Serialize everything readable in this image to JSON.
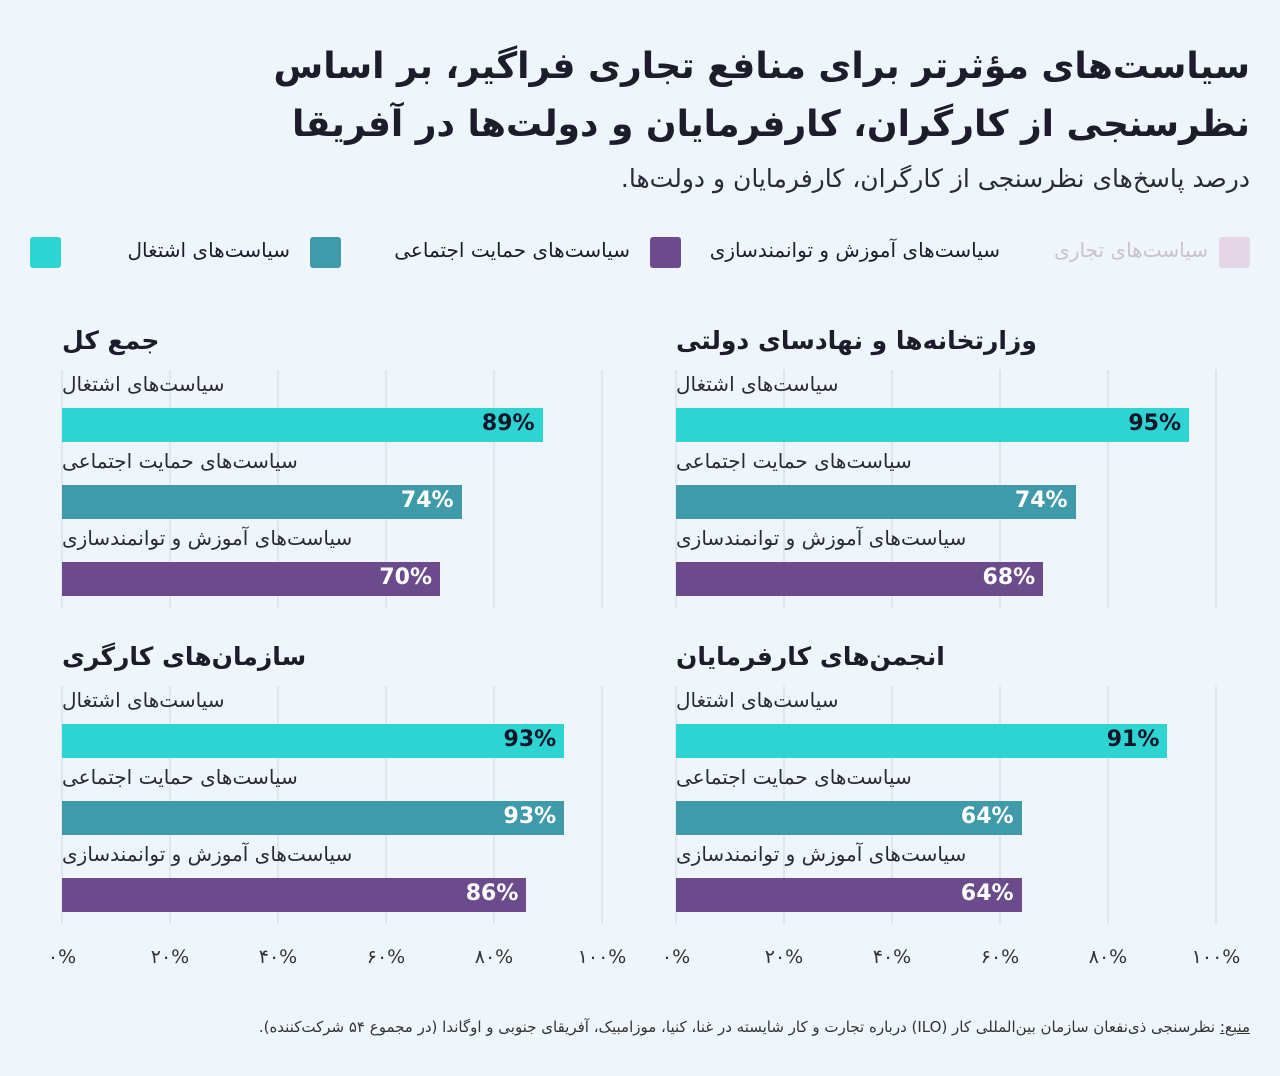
{
  "title": "سیاست‌های مؤثرتر برای منافع تجاری فراگیر، بر اساس نظرسنجی از کارگران، کارفرمایان و دولت‌ها در آفریقا",
  "subtitle": "درصد پاسخ‌های نظرسنجی از کارگران، کارفرمایان و دولت‌ها.",
  "legend": [
    {
      "label": "سیاست‌های اشتغال",
      "color": "#2dd4d2"
    },
    {
      "label": "سیاست‌های حمایت اجتماعی",
      "color": "#3f9ba9"
    },
    {
      "label": "سیاست‌های آموزش و توانمندسازی",
      "color": "#6b4b8c"
    },
    {
      "label": "سیاست‌های تجاری",
      "color": "#e3d6e6",
      "faded": true
    }
  ],
  "colors": {
    "employment": "#2dd4d2",
    "social": "#3f9ba9",
    "education": "#6b4b8c",
    "grid": "#e0e6ed"
  },
  "chart_data": {
    "type": "bar",
    "orientation": "horizontal",
    "xlim": [
      0,
      100
    ],
    "tick_labels": [
      "۰%",
      "۲۰%",
      "۴۰%",
      "۶۰%",
      "۸۰%",
      "۱۰۰%"
    ],
    "ticks": [
      0,
      20,
      40,
      60,
      80,
      100
    ],
    "panels": [
      {
        "title": "جمع کل",
        "bars": [
          {
            "label": "سیاست‌های اشتغال",
            "value": 89,
            "value_label": "89%",
            "color": "#2dd4d2"
          },
          {
            "label": "سیاست‌های حمایت اجتماعی",
            "value": 74,
            "value_label": "74%",
            "color": "#3f9ba9"
          },
          {
            "label": "سیاست‌های آموزش و توانمندسازی",
            "value": 70,
            "value_label": "70%",
            "color": "#6b4b8c"
          }
        ]
      },
      {
        "title": "وزارتخانه‌ها و نهادسای دولتی",
        "bars": [
          {
            "label": "سیاست‌های اشتغال",
            "value": 95,
            "value_label": "95%",
            "color": "#2dd4d2"
          },
          {
            "label": "سیاست‌های حمایت اجتماعی",
            "value": 74,
            "value_label": "74%",
            "color": "#3f9ba9"
          },
          {
            "label": "سیاست‌های آموزش و توانمندسازی",
            "value": 68,
            "value_label": "68%",
            "color": "#6b4b8c"
          }
        ]
      },
      {
        "title": "سازمان‌های کارگری",
        "bars": [
          {
            "label": "سیاست‌های اشتغال",
            "value": 93,
            "value_label": "93%",
            "color": "#2dd4d2"
          },
          {
            "label": "سیاست‌های حمایت اجتماعی",
            "value": 93,
            "value_label": "93%",
            "color": "#3f9ba9"
          },
          {
            "label": "سیاست‌های آموزش و توانمندسازی",
            "value": 86,
            "value_label": "86%",
            "color": "#6b4b8c"
          }
        ]
      },
      {
        "title": "انجمن‌های کارفرمایان",
        "bars": [
          {
            "label": "سیاست‌های اشتغال",
            "value": 91,
            "value_label": "91%",
            "color": "#2dd4d2"
          },
          {
            "label": "سیاست‌های حمایت اجتماعی",
            "value": 64,
            "value_label": "64%",
            "color": "#3f9ba9"
          },
          {
            "label": "سیاست‌های آموزش و توانمندسازی",
            "value": 64,
            "value_label": "64%",
            "color": "#6b4b8c"
          }
        ]
      }
    ]
  },
  "source": {
    "label": "منبع:",
    "text": " نظرسنجی ذی‌نفعان سازمان بین‌المللی کار (ILO) درباره تجارت و کار شایسته در غنا، کنیا، موزامبیک، آفریقای جنوبی و اوگاندا (در مجموع ۵۴ شرکت‌کننده)."
  }
}
